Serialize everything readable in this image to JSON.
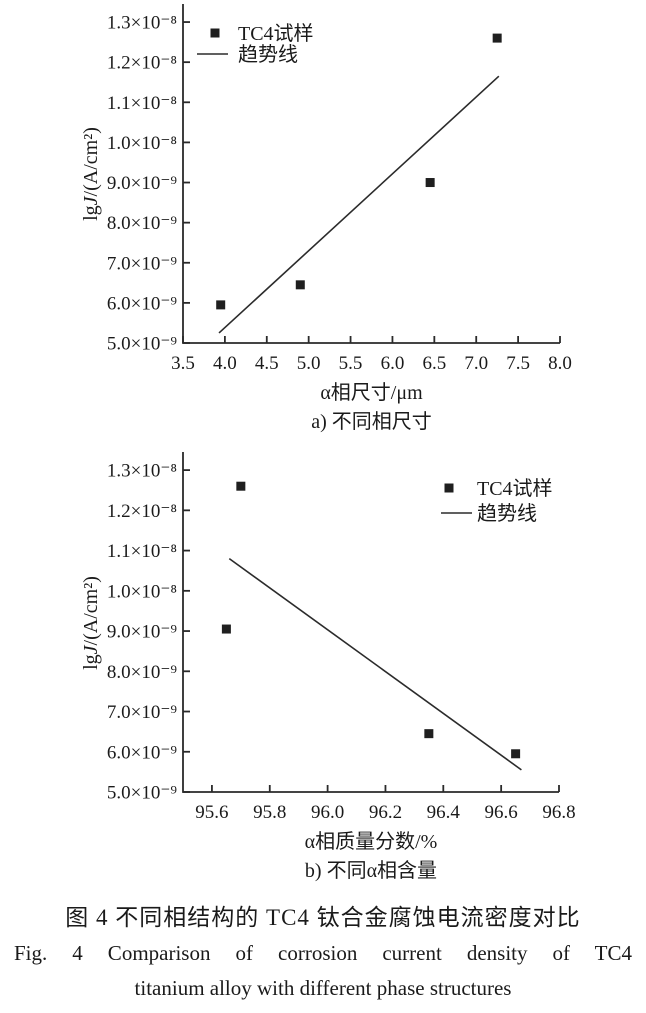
{
  "colors": {
    "ink": "#1a1a1a",
    "marker": "#1f1f1f",
    "background": "#ffffff"
  },
  "caption": {
    "zh": "图 4  不同相结构的 TC4 钛合金腐蚀电流密度对比",
    "en_line1": "Fig. 4  Comparison of corrosion current density of TC4",
    "en_line2": "titanium alloy with different phase structures"
  },
  "chart_data": [
    {
      "type": "scatter",
      "title": "a) 不同相尺寸",
      "xlabel": "α相尺寸/μm",
      "ylabel": "lgJ/(A/cm²)",
      "ylabel_parts": [
        {
          "t": "lg"
        },
        {
          "t": "J",
          "i": true
        },
        {
          "t": "/(A/cm²)"
        }
      ],
      "xlim": [
        3.5,
        8.0
      ],
      "ylim": [
        5e-09,
        1.345e-08
      ],
      "xtick_vals": [
        3.5,
        4.0,
        4.5,
        5.0,
        5.5,
        6.0,
        6.5,
        7.0,
        7.5,
        8.0
      ],
      "xticks": [
        "3.5",
        "4.0",
        "4.5",
        "5.0",
        "5.5",
        "6.0",
        "6.5",
        "7.0",
        "7.5",
        "8.0"
      ],
      "ytick_vals": [
        5e-09,
        6e-09,
        7e-09,
        8e-09,
        9e-09,
        1e-08,
        1.1e-08,
        1.2e-08,
        1.3e-08
      ],
      "ytick_labels": [
        "5.0×10⁻⁹",
        "6.0×10⁻⁹",
        "7.0×10⁻⁹",
        "8.0×10⁻⁹",
        "9.0×10⁻⁹",
        "1.0×10⁻⁸",
        "1.1×10⁻⁸",
        "1.2×10⁻⁸",
        "1.3×10⁻⁸"
      ],
      "legend": [
        "TC4试样",
        "趋势线"
      ],
      "legend_position": "top-left-inside",
      "grid": false,
      "series": [
        {
          "name": "TC4试样",
          "kind": "points",
          "marker": "square",
          "points": [
            [
              3.95,
              5.95e-09
            ],
            [
              4.9,
              6.45e-09
            ],
            [
              6.45,
              9e-09
            ],
            [
              7.25,
              1.26e-08
            ]
          ]
        },
        {
          "name": "趋势线",
          "kind": "line",
          "points": [
            [
              3.93,
              5.25e-09
            ],
            [
              7.27,
              1.165e-08
            ]
          ]
        }
      ]
    },
    {
      "type": "scatter",
      "title": "b) 不同α相含量",
      "xlabel": "α相质量分数/%",
      "ylabel": "lgJ/(A/cm²)",
      "ylabel_parts": [
        {
          "t": "lg"
        },
        {
          "t": "J",
          "i": true
        },
        {
          "t": "/(A/cm²)"
        }
      ],
      "xlim": [
        95.5,
        96.8
      ],
      "ylim": [
        5e-09,
        1.345e-08
      ],
      "xtick_vals": [
        95.6,
        95.8,
        96.0,
        96.2,
        96.4,
        96.6,
        96.8
      ],
      "xticks": [
        "95.6",
        "95.8",
        "96.0",
        "96.2",
        "96.4",
        "96.6",
        "96.8"
      ],
      "ytick_vals": [
        5e-09,
        6e-09,
        7e-09,
        8e-09,
        9e-09,
        1e-08,
        1.1e-08,
        1.2e-08,
        1.3e-08
      ],
      "ytick_labels": [
        "5.0×10⁻⁹",
        "6.0×10⁻⁹",
        "7.0×10⁻⁹",
        "8.0×10⁻⁹",
        "9.0×10⁻⁹",
        "1.0×10⁻⁸",
        "1.1×10⁻⁸",
        "1.2×10⁻⁸",
        "1.3×10⁻⁸"
      ],
      "legend": [
        "TC4试样",
        "趋势线"
      ],
      "legend_position": "top-right-inside",
      "grid": false,
      "series": [
        {
          "name": "TC4试样",
          "kind": "points",
          "marker": "square",
          "points": [
            [
              95.65,
              9.05e-09
            ],
            [
              95.7,
              1.26e-08
            ],
            [
              96.35,
              6.45e-09
            ],
            [
              96.65,
              5.95e-09
            ]
          ]
        },
        {
          "name": "趋势线",
          "kind": "line",
          "points": [
            [
              95.66,
              1.08e-08
            ],
            [
              96.67,
              5.55e-09
            ]
          ]
        }
      ]
    }
  ]
}
